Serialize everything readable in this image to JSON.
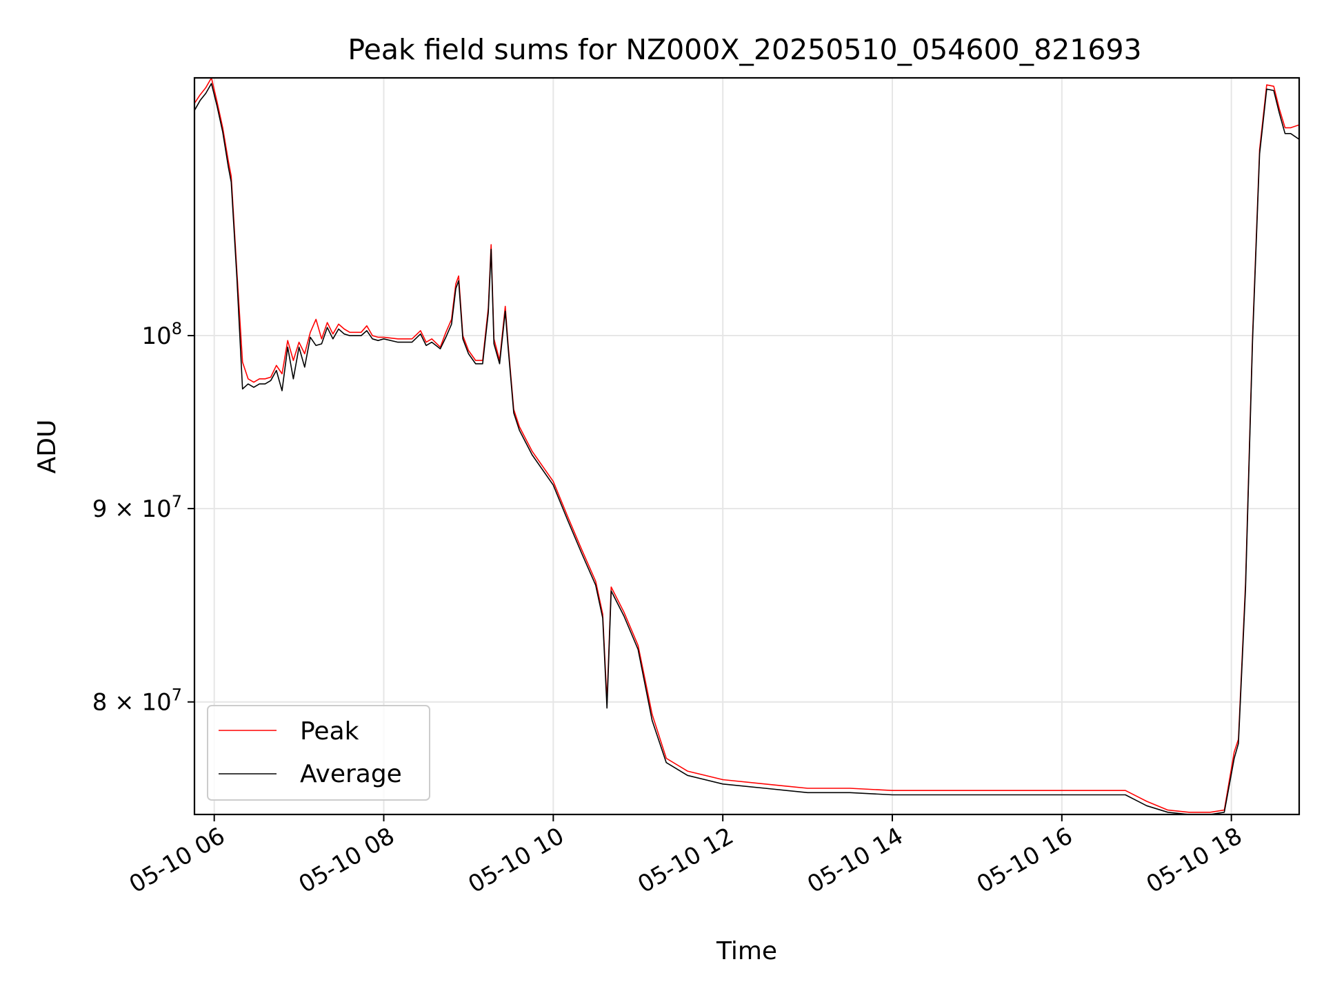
{
  "chart_data": {
    "type": "line",
    "title": "Peak field sums for NZ000X_20250510_054600_821693",
    "xlabel": "Time",
    "ylabel": "ADU",
    "y_scale": "log",
    "grid": true,
    "legend_position": "lower-left",
    "xlim": [
      "2025-05-10 05:46",
      "2025-05-10 18:48"
    ],
    "ylim": [
      74700000,
      117000000
    ],
    "x_ticks": [
      {
        "value": "2025-05-10 06:00",
        "label": "05-10 06"
      },
      {
        "value": "2025-05-10 08:00",
        "label": "05-10 08"
      },
      {
        "value": "2025-05-10 10:00",
        "label": "05-10 10"
      },
      {
        "value": "2025-05-10 12:00",
        "label": "05-10 12"
      },
      {
        "value": "2025-05-10 14:00",
        "label": "05-10 14"
      },
      {
        "value": "2025-05-10 16:00",
        "label": "05-10 16"
      },
      {
        "value": "2025-05-10 18:00",
        "label": "05-10 18"
      }
    ],
    "y_ticks": [
      {
        "value": 100000000,
        "base": "10",
        "exp": "8"
      },
      {
        "value": 90000000,
        "base": "9 × 10",
        "exp": "7"
      },
      {
        "value": 80000000,
        "base": "8 × 10",
        "exp": "7"
      }
    ],
    "series": [
      {
        "name": "Peak",
        "color": "#ff0000",
        "x": [
          "2025-05-10 05:46",
          "2025-05-10 05:50",
          "2025-05-10 05:54",
          "2025-05-10 05:58",
          "2025-05-10 06:02",
          "2025-05-10 06:06",
          "2025-05-10 06:10",
          "2025-05-10 06:12",
          "2025-05-10 06:16",
          "2025-05-10 06:20",
          "2025-05-10 06:24",
          "2025-05-10 06:28",
          "2025-05-10 06:32",
          "2025-05-10 06:36",
          "2025-05-10 06:40",
          "2025-05-10 06:44",
          "2025-05-10 06:48",
          "2025-05-10 06:52",
          "2025-05-10 06:56",
          "2025-05-10 07:00",
          "2025-05-10 07:04",
          "2025-05-10 07:08",
          "2025-05-10 07:12",
          "2025-05-10 07:16",
          "2025-05-10 07:20",
          "2025-05-10 07:24",
          "2025-05-10 07:28",
          "2025-05-10 07:32",
          "2025-05-10 07:36",
          "2025-05-10 07:40",
          "2025-05-10 07:44",
          "2025-05-10 07:48",
          "2025-05-10 07:52",
          "2025-05-10 07:56",
          "2025-05-10 08:00",
          "2025-05-10 08:10",
          "2025-05-10 08:20",
          "2025-05-10 08:26",
          "2025-05-10 08:30",
          "2025-05-10 08:34",
          "2025-05-10 08:40",
          "2025-05-10 08:44",
          "2025-05-10 08:48",
          "2025-05-10 08:51",
          "2025-05-10 08:53",
          "2025-05-10 08:56",
          "2025-05-10 09:00",
          "2025-05-10 09:05",
          "2025-05-10 09:10",
          "2025-05-10 09:14",
          "2025-05-10 09:16",
          "2025-05-10 09:18",
          "2025-05-10 09:22",
          "2025-05-10 09:26",
          "2025-05-10 09:28",
          "2025-05-10 09:32",
          "2025-05-10 09:36",
          "2025-05-10 09:45",
          "2025-05-10 10:00",
          "2025-05-10 10:10",
          "2025-05-10 10:20",
          "2025-05-10 10:30",
          "2025-05-10 10:35",
          "2025-05-10 10:38",
          "2025-05-10 10:41",
          "2025-05-10 10:50",
          "2025-05-10 11:00",
          "2025-05-10 11:10",
          "2025-05-10 11:20",
          "2025-05-10 11:35",
          "2025-05-10 12:00",
          "2025-05-10 12:30",
          "2025-05-10 13:00",
          "2025-05-10 13:30",
          "2025-05-10 14:00",
          "2025-05-10 14:30",
          "2025-05-10 15:00",
          "2025-05-10 15:30",
          "2025-05-10 16:00",
          "2025-05-10 16:30",
          "2025-05-10 16:45",
          "2025-05-10 17:00",
          "2025-05-10 17:15",
          "2025-05-10 17:30",
          "2025-05-10 17:45",
          "2025-05-10 17:55",
          "2025-05-10 18:02",
          "2025-05-10 18:05",
          "2025-05-10 18:10",
          "2025-05-10 18:15",
          "2025-05-10 18:20",
          "2025-05-10 18:25",
          "2025-05-10 18:30",
          "2025-05-10 18:34",
          "2025-05-10 18:38",
          "2025-05-10 18:42",
          "2025-05-10 18:48"
        ],
        "values": [
          115200000,
          115800000,
          116300000,
          117000000,
          115300000,
          113500000,
          111200000,
          110200000,
          104000000,
          98400000,
          97400000,
          97200000,
          97400000,
          97400000,
          97500000,
          98200000,
          97700000,
          99700000,
          98500000,
          99600000,
          98900000,
          100200000,
          101000000,
          99800000,
          100800000,
          100100000,
          100700000,
          100400000,
          100200000,
          100200000,
          100200000,
          100600000,
          100000000,
          99900000,
          99900000,
          99800000,
          99800000,
          100300000,
          99600000,
          99800000,
          99300000,
          100200000,
          101000000,
          103200000,
          103700000,
          100000000,
          99100000,
          98500000,
          98500000,
          101700000,
          105700000,
          99800000,
          98500000,
          101800000,
          99500000,
          95600000,
          94600000,
          93200000,
          91500000,
          89600000,
          87800000,
          86100000,
          84400000,
          80000000,
          85800000,
          84500000,
          82800000,
          79400000,
          77300000,
          76700000,
          76300000,
          76100000,
          75900000,
          75900000,
          75800000,
          75800000,
          75800000,
          75800000,
          75800000,
          75800000,
          75800000,
          75300000,
          74900000,
          74800000,
          74800000,
          74900000,
          77600000,
          78200000,
          86000000,
          100000000,
          112000000,
          116500000,
          116400000,
          114800000,
          113500000,
          113500000,
          113700000
        ]
      },
      {
        "name": "Average",
        "color": "#000000",
        "x": [
          "2025-05-10 05:46",
          "2025-05-10 05:50",
          "2025-05-10 05:54",
          "2025-05-10 05:58",
          "2025-05-10 06:02",
          "2025-05-10 06:06",
          "2025-05-10 06:10",
          "2025-05-10 06:12",
          "2025-05-10 06:16",
          "2025-05-10 06:20",
          "2025-05-10 06:24",
          "2025-05-10 06:28",
          "2025-05-10 06:32",
          "2025-05-10 06:36",
          "2025-05-10 06:40",
          "2025-05-10 06:44",
          "2025-05-10 06:48",
          "2025-05-10 06:52",
          "2025-05-10 06:56",
          "2025-05-10 07:00",
          "2025-05-10 07:04",
          "2025-05-10 07:08",
          "2025-05-10 07:12",
          "2025-05-10 07:16",
          "2025-05-10 07:20",
          "2025-05-10 07:24",
          "2025-05-10 07:28",
          "2025-05-10 07:32",
          "2025-05-10 07:36",
          "2025-05-10 07:40",
          "2025-05-10 07:44",
          "2025-05-10 07:48",
          "2025-05-10 07:52",
          "2025-05-10 07:56",
          "2025-05-10 08:00",
          "2025-05-10 08:10",
          "2025-05-10 08:20",
          "2025-05-10 08:26",
          "2025-05-10 08:30",
          "2025-05-10 08:34",
          "2025-05-10 08:40",
          "2025-05-10 08:44",
          "2025-05-10 08:48",
          "2025-05-10 08:51",
          "2025-05-10 08:53",
          "2025-05-10 08:56",
          "2025-05-10 09:00",
          "2025-05-10 09:05",
          "2025-05-10 09:10",
          "2025-05-10 09:14",
          "2025-05-10 09:16",
          "2025-05-10 09:18",
          "2025-05-10 09:22",
          "2025-05-10 09:26",
          "2025-05-10 09:28",
          "2025-05-10 09:32",
          "2025-05-10 09:36",
          "2025-05-10 09:45",
          "2025-05-10 10:00",
          "2025-05-10 10:10",
          "2025-05-10 10:20",
          "2025-05-10 10:30",
          "2025-05-10 10:35",
          "2025-05-10 10:38",
          "2025-05-10 10:41",
          "2025-05-10 10:50",
          "2025-05-10 11:00",
          "2025-05-10 11:10",
          "2025-05-10 11:20",
          "2025-05-10 11:35",
          "2025-05-10 12:00",
          "2025-05-10 12:30",
          "2025-05-10 13:00",
          "2025-05-10 13:30",
          "2025-05-10 14:00",
          "2025-05-10 14:30",
          "2025-05-10 15:00",
          "2025-05-10 15:30",
          "2025-05-10 16:00",
          "2025-05-10 16:30",
          "2025-05-10 16:45",
          "2025-05-10 17:00",
          "2025-05-10 17:15",
          "2025-05-10 17:30",
          "2025-05-10 17:45",
          "2025-05-10 17:55",
          "2025-05-10 18:02",
          "2025-05-10 18:05",
          "2025-05-10 18:10",
          "2025-05-10 18:15",
          "2025-05-10 18:20",
          "2025-05-10 18:25",
          "2025-05-10 18:30",
          "2025-05-10 18:34",
          "2025-05-10 18:38",
          "2025-05-10 18:42",
          "2025-05-10 18:48"
        ],
        "values": [
          114700000,
          115400000,
          115900000,
          116600000,
          115000000,
          113200000,
          110800000,
          109800000,
          103600000,
          96800000,
          97100000,
          96900000,
          97100000,
          97100000,
          97300000,
          97900000,
          96700000,
          99300000,
          97400000,
          99300000,
          98100000,
          99900000,
          99400000,
          99500000,
          100500000,
          99800000,
          100400000,
          100100000,
          100000000,
          100000000,
          100000000,
          100300000,
          99800000,
          99700000,
          99800000,
          99600000,
          99600000,
          100100000,
          99400000,
          99600000,
          99200000,
          99900000,
          100700000,
          102900000,
          103400000,
          99800000,
          98900000,
          98300000,
          98300000,
          101400000,
          105400000,
          99500000,
          98300000,
          101500000,
          99300000,
          95400000,
          94400000,
          93000000,
          91300000,
          89400000,
          87600000,
          85900000,
          84200000,
          79700000,
          85600000,
          84300000,
          82600000,
          79100000,
          77100000,
          76500000,
          76100000,
          75900000,
          75700000,
          75700000,
          75600000,
          75600000,
          75600000,
          75600000,
          75600000,
          75600000,
          75600000,
          75100000,
          74800000,
          74700000,
          74700000,
          74800000,
          77300000,
          78000000,
          85700000,
          99700000,
          111700000,
          116200000,
          116100000,
          114500000,
          113100000,
          113100000,
          112700000
        ]
      }
    ]
  }
}
